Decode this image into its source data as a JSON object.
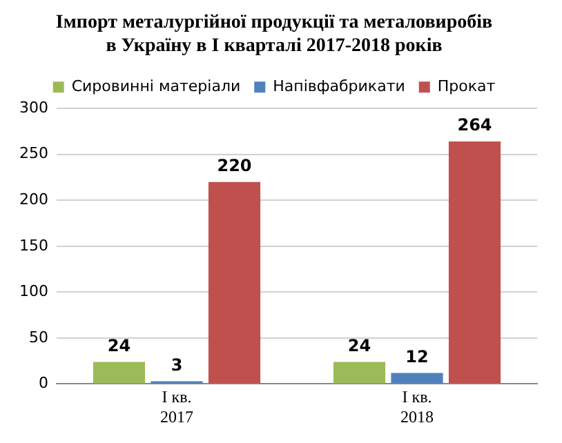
{
  "chart_data": {
    "type": "bar",
    "title": "Імпорт металургійної продукції та металовиробів\nв Україну в I кварталі 2017-2018 років",
    "categories": [
      "I кв.\n2017",
      "I кв.\n2018"
    ],
    "series": [
      {
        "name": "Сировинні матеріали",
        "color": "#9bbb59",
        "values": [
          24,
          24
        ]
      },
      {
        "name": "Напівфабрикати",
        "color": "#4f81bd",
        "values": [
          3,
          12
        ]
      },
      {
        "name": "Прокат",
        "color": "#c0504d",
        "values": [
          220,
          264
        ]
      }
    ],
    "ylim": [
      0,
      300
    ],
    "yticks": [
      0,
      50,
      100,
      150,
      200,
      250,
      300
    ],
    "grid": "y",
    "legend": "top",
    "data_labels": true
  }
}
